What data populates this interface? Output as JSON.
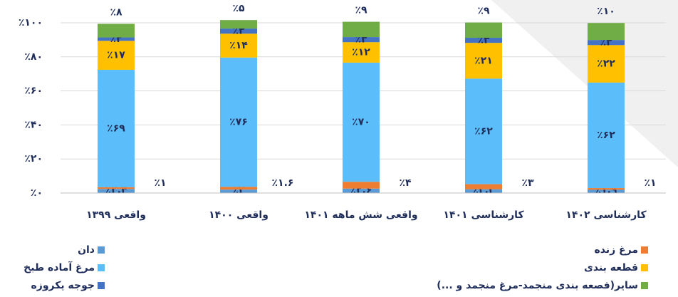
{
  "chart_data": {
    "type": "stacked_bar",
    "categories": [
      "واقعی ۱۳۹۹",
      "واقعی ۱۴۰۰",
      "واقعی شش ماهه ۱۴۰۱",
      "کارشناسی ۱۴۰۱",
      "کارشناسی ۱۴۰۲"
    ],
    "series": [
      {
        "name": "دان",
        "color": "#5b9bd5",
        "values": [
          2.4,
          2,
          2.6,
          2.2,
          1.9
        ],
        "value_labels": [
          "٪۲.۴",
          "٪۲",
          "٪۲.۶",
          "٪۲.۲",
          "٪۱.۹"
        ]
      },
      {
        "name": "مرغ زنده",
        "color": "#ed7d31",
        "values": [
          1,
          1.6,
          4,
          3,
          1
        ],
        "value_labels": [
          "٪۱",
          "٪۱.۶",
          "٪۴",
          "٪۳",
          "٪۱"
        ]
      },
      {
        "name": "مرغ آماده طبخ",
        "color": "#5bbdf9",
        "values": [
          69,
          76,
          70,
          62,
          62
        ],
        "value_labels": [
          "٪۶۹",
          "٪۷۶",
          "٪۷۰",
          "٪۶۲",
          "٪۶۲"
        ]
      },
      {
        "name": "قطعه بندی",
        "color": "#ffc000",
        "values": [
          17,
          14,
          12,
          21,
          22
        ],
        "value_labels": [
          "٪۱۷",
          "٪۱۴",
          "٪۱۲",
          "٪۲۱",
          "٪۲۲"
        ]
      },
      {
        "name": "جوجه یکروزه",
        "color": "#4472c4",
        "values": [
          2,
          3,
          3,
          3,
          3
        ],
        "value_labels": [
          "٪۲",
          "٪۳",
          "٪۳",
          "٪۳",
          "٪۳"
        ]
      },
      {
        "name": "سایر(فصعه بندی منجمد-مرغ منجمد و ...)",
        "color": "#70ad47",
        "values": [
          8,
          5,
          9,
          9,
          10
        ],
        "value_labels": [
          "٪۸",
          "٪۵",
          "٪۹",
          "٪۹",
          "٪۱۰"
        ]
      }
    ],
    "ylim": [
      0,
      100
    ],
    "yticks": [
      {
        "value": 0,
        "label": "٪۰"
      },
      {
        "value": 20,
        "label": "٪۲۰"
      },
      {
        "value": 40,
        "label": "٪۴۰"
      },
      {
        "value": 60,
        "label": "٪۶۰"
      },
      {
        "value": 80,
        "label": "٪۸۰"
      },
      {
        "value": 100,
        "label": "٪۱۰۰"
      }
    ],
    "grid": true
  }
}
